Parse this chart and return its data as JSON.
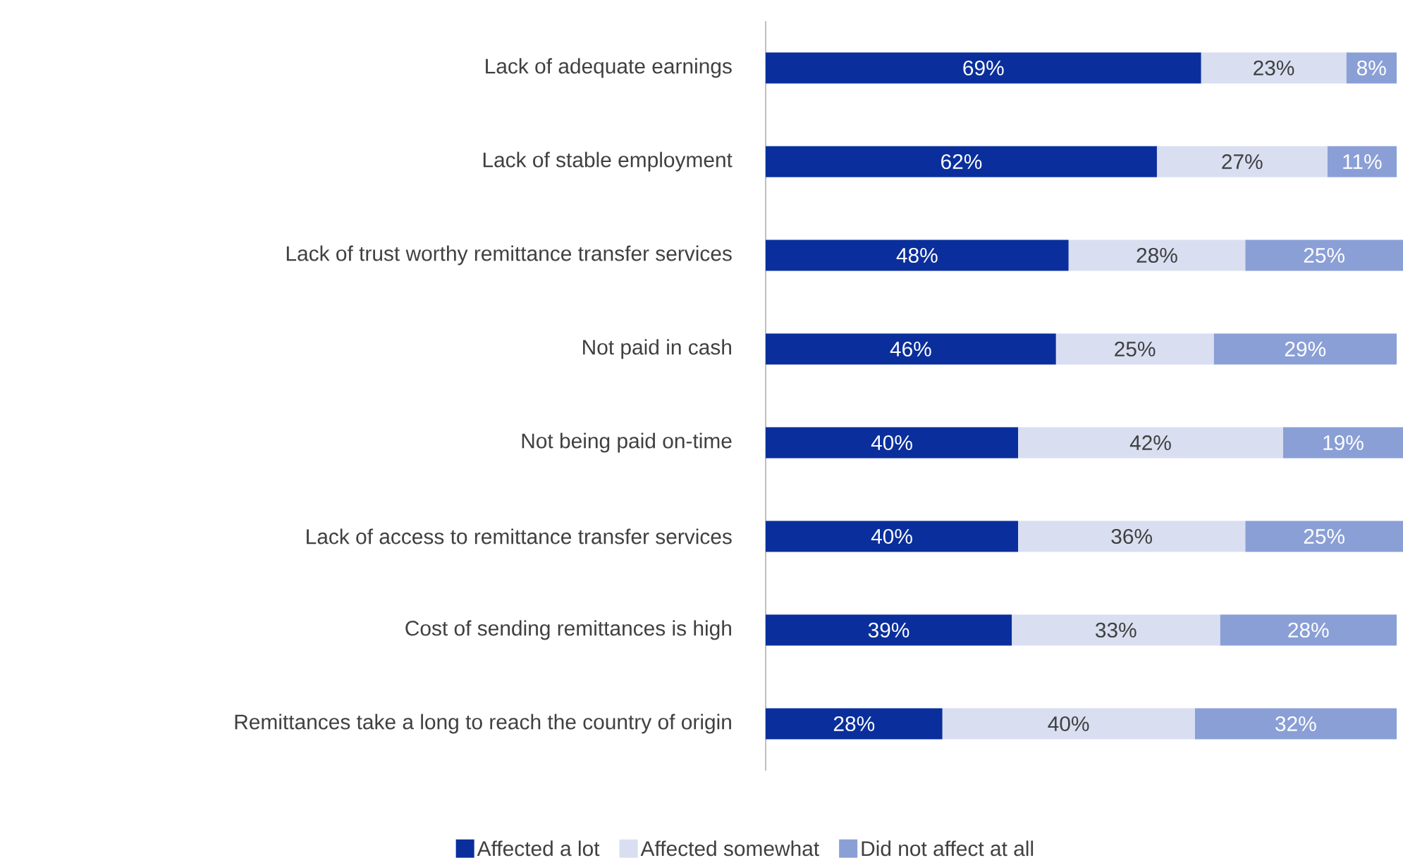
{
  "chart_data": {
    "type": "bar",
    "orientation": "horizontal",
    "stacked": true,
    "legend": "bottom",
    "categories": [
      "Lack of adequate earnings",
      "Lack of stable employment",
      "Lack of trust worthy remittance transfer services",
      "Not paid in cash",
      "Not being paid on-time",
      "Lack of access to remittance transfer services",
      "Cost of sending remittances is high",
      "Remittances take a long to reach the country of origin"
    ],
    "series": [
      {
        "name": "Affected a lot",
        "color": "#0a2f9c",
        "values": [
          69,
          62,
          48,
          46,
          40,
          40,
          39,
          28
        ],
        "value_labels": [
          "69%",
          "62%",
          "48%",
          "46%",
          "40%",
          "40%",
          "39%",
          "28%"
        ]
      },
      {
        "name": "Affected somewhat",
        "color": "#d9dff1",
        "values": [
          23,
          27,
          28,
          25,
          42,
          36,
          33,
          40
        ],
        "value_labels": [
          "23%",
          "27%",
          "28%",
          "25%",
          "42%",
          "36%",
          "33%",
          "40%"
        ]
      },
      {
        "name": "Did not affect at all",
        "color": "#8a9fd6",
        "values": [
          8,
          11,
          25,
          29,
          19,
          25,
          28,
          32
        ],
        "value_labels": [
          "8%",
          "11%",
          "25%",
          "29%",
          "19%",
          "25%",
          "28%",
          "32%"
        ]
      }
    ]
  }
}
